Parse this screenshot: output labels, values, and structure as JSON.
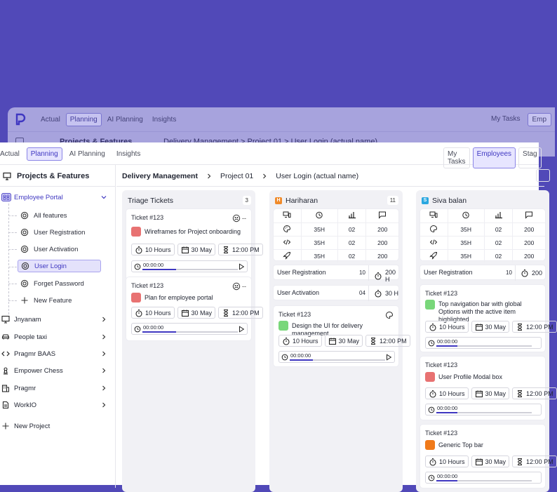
{
  "ghost": {
    "nav": [
      "Actual",
      "Planning",
      "AI Planning",
      "Insights"
    ],
    "right": [
      "My Tasks",
      "Emp"
    ],
    "section": "Projects & Features",
    "breadcrumb": "Delivery Management  >  Project 01  >  User Login (actual name)"
  },
  "topnav": {
    "left": [
      "Actual",
      "Planning",
      "AI Planning",
      "Insights"
    ],
    "right": [
      "My Tasks",
      "Employees",
      "Stag"
    ]
  },
  "sidebar": {
    "title": "Projects & Features",
    "portal": "Employee Portal",
    "features": [
      "All features",
      "User Registration",
      "User Activation",
      "User Login",
      "Forget Password",
      "New Feature"
    ],
    "projects": [
      "Jnyanam",
      "People taxi",
      "Pragmr BAAS",
      "Empower Chess",
      "Pragmr",
      "WorkIO"
    ],
    "new_project": "New Project"
  },
  "breadcrumb": [
    "Delivery Management",
    "Project 01",
    "User Login (actual name)"
  ],
  "columns": {
    "triage": {
      "title": "Triage Tickets",
      "count": "3",
      "cards": [
        {
          "id": "Ticket #123",
          "badge": "--",
          "title": "Wireframes for Project onboarding",
          "color": "#e87272",
          "hours": "10 Hours",
          "date": "30 May",
          "time": "12:00 PM",
          "timer": "00:00:00",
          "progress": 0.35
        },
        {
          "id": "Ticket #123",
          "badge": "--",
          "title": "Plan for employee portal",
          "color": "#e87272",
          "hours": "10 Hours",
          "date": "30 May",
          "time": "12:00 PM",
          "timer": "00:00:00",
          "progress": 0.35
        }
      ]
    },
    "hariharan": {
      "title": "Hariharan",
      "initial": "H",
      "color": "#f08a2a",
      "count": "11",
      "stats": [
        [
          "35H",
          "02",
          "200"
        ],
        [
          "35H",
          "02",
          "200"
        ],
        [
          "35H",
          "02",
          "200"
        ]
      ],
      "summary": [
        {
          "name": "User Registration",
          "count": "10",
          "hours": "200 H"
        },
        {
          "name": "User Activation",
          "count": "04",
          "hours": "30 H"
        }
      ],
      "cards": [
        {
          "id": "Ticket #123",
          "title": "Design the UI for delivery management",
          "color": "#79d77a",
          "hours": "10 Hours",
          "date": "30 May",
          "time": "12:00 PM",
          "timer": "00:00:00",
          "progress": 0.24
        }
      ]
    },
    "siva": {
      "title": "Siva balan",
      "initial": "S",
      "color": "#2aa7e0",
      "stats": [
        [
          "35H",
          "02",
          "200"
        ],
        [
          "35H",
          "02",
          "200"
        ],
        [
          "35H",
          "02",
          "200"
        ]
      ],
      "summary": [
        {
          "name": "User Registration",
          "count": "10",
          "hours": "200"
        }
      ],
      "cards": [
        {
          "id": "Ticket #123",
          "title": "Top navigation bar with global Options with the active item highlighted",
          "color": "#79d77a",
          "hours": "10 Hours",
          "date": "30 May",
          "time": "12:00 PM",
          "timer": "00:00:00",
          "progress": 0.22
        },
        {
          "id": "Ticket #123",
          "title": "User Profile Modal box",
          "color": "#e87272",
          "hours": "10 Hours",
          "date": "30 May",
          "time": "12:00 PM",
          "timer": "00:00:00",
          "progress": 0.22
        },
        {
          "id": "Ticket #123",
          "title": "Generic Top bar",
          "color": "#f07a1a",
          "hours": "10 Hours",
          "date": "30 May",
          "time": "12:00 PM",
          "timer": "00:00:00",
          "progress": 0.22
        }
      ]
    }
  }
}
